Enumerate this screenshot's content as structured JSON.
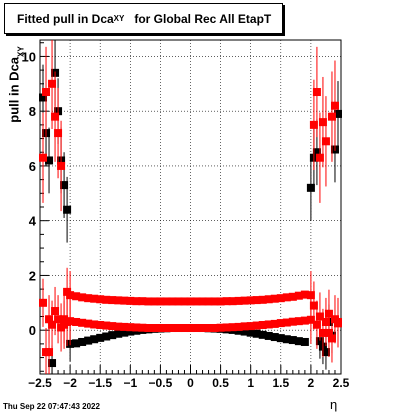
{
  "title": {
    "main": "Fitted pull in Dca",
    "sub": "XY",
    "suffix": "for Global Rec All EtapT"
  },
  "ylabel": {
    "main": "pull in Dca",
    "sub": "XY"
  },
  "xlabel": "η",
  "date": "Thu Sep 22 07:47:43 2022",
  "colors": {
    "series_black": "#000000",
    "series_red": "#ff0000"
  },
  "chart_data": {
    "type": "scatter",
    "xlim": [
      -2.5,
      2.5
    ],
    "ylim": [
      -1.6,
      10.6
    ],
    "grid": true,
    "xticks": [
      "−2.5",
      "−2",
      "−1.5",
      "−1",
      "−0.5",
      "0",
      "0.5",
      "1",
      "1.5",
      "2",
      "2.5"
    ],
    "yticks": [
      "0",
      "2",
      "4",
      "6",
      "8",
      "10"
    ],
    "series": [
      {
        "points": [
          [
            -2.45,
            8.5
          ],
          [
            -2.4,
            7.2
          ],
          [
            -2.35,
            6.2
          ],
          [
            -2.3,
            -1.2
          ],
          [
            -2.25,
            9.4
          ],
          [
            -2.2,
            8.0
          ],
          [
            -2.15,
            6.2
          ],
          [
            -2.1,
            5.3
          ],
          [
            -2.05,
            4.4
          ],
          [
            -2.0,
            -0.5
          ],
          [
            -1.9,
            -0.48
          ],
          [
            -1.8,
            -0.43
          ],
          [
            -1.7,
            -0.38
          ],
          [
            -1.6,
            -0.33
          ],
          [
            -1.5,
            -0.28
          ],
          [
            -1.4,
            -0.23
          ],
          [
            -1.3,
            -0.18
          ],
          [
            -1.2,
            -0.13
          ],
          [
            -1.1,
            -0.09
          ],
          [
            -1.0,
            -0.05
          ],
          [
            -0.9,
            -0.02
          ],
          [
            -0.8,
            0.01
          ],
          [
            -0.7,
            0.03
          ],
          [
            -0.6,
            0.05
          ],
          [
            -0.5,
            0.06
          ],
          [
            -0.4,
            0.07
          ],
          [
            -0.3,
            0.08
          ],
          [
            -0.2,
            0.08
          ],
          [
            -0.1,
            0.08
          ],
          [
            0.0,
            0.08
          ],
          [
            0.1,
            0.08
          ],
          [
            0.2,
            0.08
          ],
          [
            0.3,
            0.07
          ],
          [
            0.4,
            0.06
          ],
          [
            0.5,
            0.05
          ],
          [
            0.6,
            0.03
          ],
          [
            0.7,
            0.01
          ],
          [
            0.8,
            -0.02
          ],
          [
            0.9,
            -0.05
          ],
          [
            1.0,
            -0.09
          ],
          [
            1.1,
            -0.13
          ],
          [
            1.2,
            -0.17
          ],
          [
            1.3,
            -0.21
          ],
          [
            1.4,
            -0.25
          ],
          [
            1.5,
            -0.29
          ],
          [
            1.6,
            -0.33
          ],
          [
            1.7,
            -0.36
          ],
          [
            1.8,
            -0.4
          ],
          [
            1.9,
            -0.43
          ],
          [
            2.0,
            5.2
          ],
          [
            2.05,
            6.3
          ],
          [
            2.1,
            6.5
          ],
          [
            2.15,
            -0.4
          ],
          [
            2.2,
            -0.6
          ],
          [
            2.25,
            -0.8
          ],
          [
            2.3,
            0.3
          ],
          [
            2.35,
            -0.2
          ],
          [
            2.4,
            6.6
          ],
          [
            2.45,
            7.9
          ]
        ]
      },
      {
        "points": [
          [
            -2.45,
            6.3
          ],
          [
            -2.4,
            8.7
          ],
          [
            -2.35,
            -0.8
          ],
          [
            -2.3,
            9.0
          ],
          [
            -2.25,
            7.8
          ],
          [
            -2.2,
            7.2
          ],
          [
            -2.15,
            6.0
          ],
          [
            -2.1,
            0.2
          ],
          [
            -2.05,
            1.4
          ],
          [
            -2.0,
            1.28
          ],
          [
            -1.9,
            1.24
          ],
          [
            -1.8,
            1.2
          ],
          [
            -1.7,
            1.17
          ],
          [
            -1.6,
            1.15
          ],
          [
            -1.5,
            1.13
          ],
          [
            -1.4,
            1.11
          ],
          [
            -1.3,
            1.1
          ],
          [
            -1.2,
            1.09
          ],
          [
            -1.1,
            1.08
          ],
          [
            -1.0,
            1.07
          ],
          [
            -0.9,
            1.06
          ],
          [
            -0.8,
            1.06
          ],
          [
            -0.7,
            1.05
          ],
          [
            -0.6,
            1.05
          ],
          [
            -0.5,
            1.05
          ],
          [
            -0.4,
            1.05
          ],
          [
            -0.3,
            1.05
          ],
          [
            -0.2,
            1.05
          ],
          [
            -0.1,
            1.05
          ],
          [
            0.0,
            1.05
          ],
          [
            0.1,
            1.05
          ],
          [
            0.2,
            1.05
          ],
          [
            0.3,
            1.05
          ],
          [
            0.4,
            1.05
          ],
          [
            0.5,
            1.05
          ],
          [
            0.6,
            1.06
          ],
          [
            0.7,
            1.06
          ],
          [
            0.8,
            1.07
          ],
          [
            0.9,
            1.08
          ],
          [
            1.0,
            1.09
          ],
          [
            1.1,
            1.1
          ],
          [
            1.2,
            1.11
          ],
          [
            1.3,
            1.13
          ],
          [
            1.4,
            1.15
          ],
          [
            1.5,
            1.17
          ],
          [
            1.6,
            1.2
          ],
          [
            1.7,
            1.22
          ],
          [
            1.8,
            1.26
          ],
          [
            1.9,
            1.3
          ],
          [
            2.0,
            1.28
          ],
          [
            2.05,
            7.5
          ],
          [
            2.1,
            8.7
          ],
          [
            2.15,
            6.3
          ],
          [
            2.2,
            7.6
          ],
          [
            2.25,
            6.9
          ],
          [
            2.3,
            -0.1
          ],
          [
            2.35,
            7.8
          ],
          [
            2.4,
            8.2
          ],
          [
            2.45,
            0.25
          ]
        ]
      },
      {
        "points": [
          [
            -2.45,
            1.0
          ],
          [
            -2.4,
            -0.8
          ],
          [
            -2.35,
            0.4
          ],
          [
            -2.3,
            0.2
          ],
          [
            -2.25,
            0.7
          ],
          [
            -2.2,
            0.4
          ],
          [
            -2.15,
            0.1
          ],
          [
            -2.1,
            0.4
          ],
          [
            -2.05,
            0.3
          ],
          [
            -2.0,
            0.33
          ],
          [
            -1.9,
            0.3
          ],
          [
            -1.8,
            0.27
          ],
          [
            -1.7,
            0.24
          ],
          [
            -1.6,
            0.21
          ],
          [
            -1.5,
            0.19
          ],
          [
            -1.4,
            0.17
          ],
          [
            -1.3,
            0.15
          ],
          [
            -1.2,
            0.13
          ],
          [
            -1.1,
            0.12
          ],
          [
            -1.0,
            0.11
          ],
          [
            -0.9,
            0.1
          ],
          [
            -0.8,
            0.09
          ],
          [
            -0.7,
            0.08
          ],
          [
            -0.6,
            0.08
          ],
          [
            -0.5,
            0.08
          ],
          [
            -0.4,
            0.08
          ],
          [
            -0.3,
            0.08
          ],
          [
            -0.2,
            0.08
          ],
          [
            -0.1,
            0.08
          ],
          [
            0.0,
            0.08
          ],
          [
            0.1,
            0.08
          ],
          [
            0.2,
            0.08
          ],
          [
            0.3,
            0.08
          ],
          [
            0.4,
            0.08
          ],
          [
            0.5,
            0.09
          ],
          [
            0.6,
            0.1
          ],
          [
            0.7,
            0.11
          ],
          [
            0.8,
            0.12
          ],
          [
            0.9,
            0.14
          ],
          [
            1.0,
            0.15
          ],
          [
            1.1,
            0.17
          ],
          [
            1.2,
            0.19
          ],
          [
            1.3,
            0.21
          ],
          [
            1.4,
            0.23
          ],
          [
            1.5,
            0.26
          ],
          [
            1.6,
            0.28
          ],
          [
            1.7,
            0.31
          ],
          [
            1.8,
            0.33
          ],
          [
            1.9,
            0.35
          ],
          [
            2.0,
            0.38
          ],
          [
            2.05,
            0.9
          ],
          [
            2.1,
            0.2
          ],
          [
            2.15,
            0.5
          ],
          [
            2.2,
            -0.1
          ],
          [
            2.25,
            0.3
          ],
          [
            2.3,
            0.6
          ],
          [
            2.35,
            -0.3
          ],
          [
            2.4,
            0.4
          ],
          [
            2.45,
            0.3
          ]
        ]
      }
    ]
  }
}
